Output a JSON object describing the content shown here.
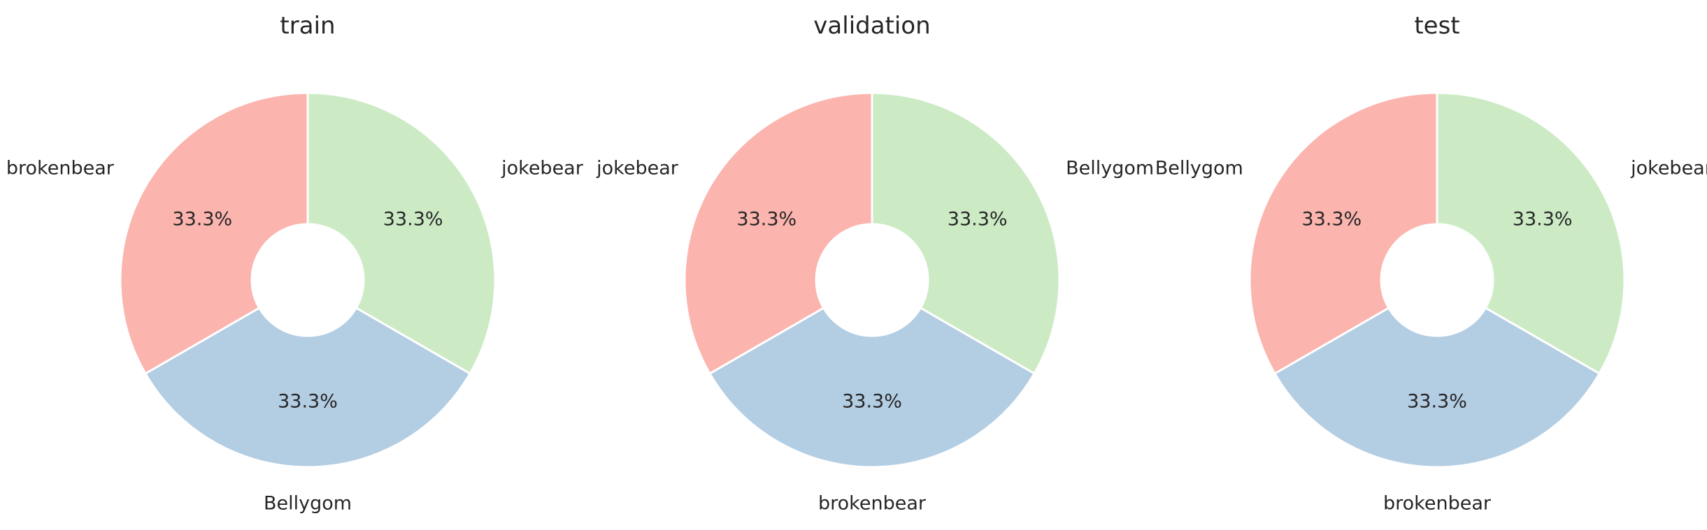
{
  "chart_data": [
    {
      "type": "pie",
      "title": "train",
      "labels": [
        "jokebear",
        "Bellygom",
        "brokenbear"
      ],
      "values": [
        33.3,
        33.3,
        33.3
      ],
      "value_labels": [
        "33.3%",
        "33.3%",
        "33.3%"
      ],
      "colors": [
        "#ccebc5",
        "#b3cde3",
        "#fbb4ae"
      ],
      "donut": true
    },
    {
      "type": "pie",
      "title": "validation",
      "labels": [
        "Bellygom",
        "brokenbear",
        "jokebear"
      ],
      "values": [
        33.3,
        33.3,
        33.3
      ],
      "value_labels": [
        "33.3%",
        "33.3%",
        "33.3%"
      ],
      "colors": [
        "#ccebc5",
        "#b3cde3",
        "#fbb4ae"
      ],
      "donut": true
    },
    {
      "type": "pie",
      "title": "test",
      "labels": [
        "jokebear",
        "brokenbear",
        "Bellygom"
      ],
      "values": [
        33.3,
        33.3,
        33.3
      ],
      "value_labels": [
        "33.3%",
        "33.3%",
        "33.3%"
      ],
      "colors": [
        "#ccebc5",
        "#b3cde3",
        "#fbb4ae"
      ],
      "donut": true
    }
  ]
}
